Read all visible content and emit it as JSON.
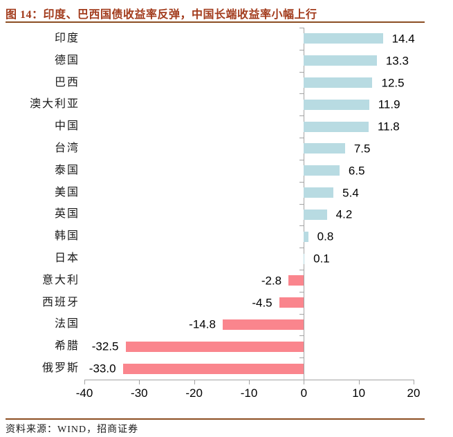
{
  "header": {
    "title": "图 14：印度、巴西国债收益率反弹，中国长端收益率小幅上行"
  },
  "footer": {
    "source": "资料来源：WIND，招商证券"
  },
  "colors": {
    "title": "#A23B1C",
    "rule": "#8B4D21",
    "axis": "#A3A3A3",
    "positive_bar": "#B8DBE2",
    "negative_bar": "#FA858D",
    "text": "#000000"
  },
  "chart_data": {
    "type": "bar",
    "orientation": "horizontal",
    "title": "图 14：印度、巴西国债收益率反弹，中国长端收益率小幅上行",
    "xlabel": "",
    "ylabel": "",
    "categories": [
      "印度",
      "德国",
      "巴西",
      "澳大利亚",
      "中国",
      "台湾",
      "泰国",
      "美国",
      "英国",
      "韩国",
      "日本",
      "意大利",
      "西班牙",
      "法国",
      "希腊",
      "俄罗斯"
    ],
    "values": [
      14.4,
      13.3,
      12.5,
      11.9,
      11.8,
      7.5,
      6.5,
      5.4,
      4.2,
      0.8,
      0.1,
      -2.8,
      -4.5,
      -14.8,
      -32.5,
      -33.0
    ],
    "xlim": [
      -40,
      20
    ],
    "xticks": [
      -40,
      -30,
      -20,
      -10,
      0,
      10,
      20
    ],
    "grid": false,
    "legend": false,
    "value_labels": true,
    "source": "资料来源：WIND，招商证券"
  }
}
